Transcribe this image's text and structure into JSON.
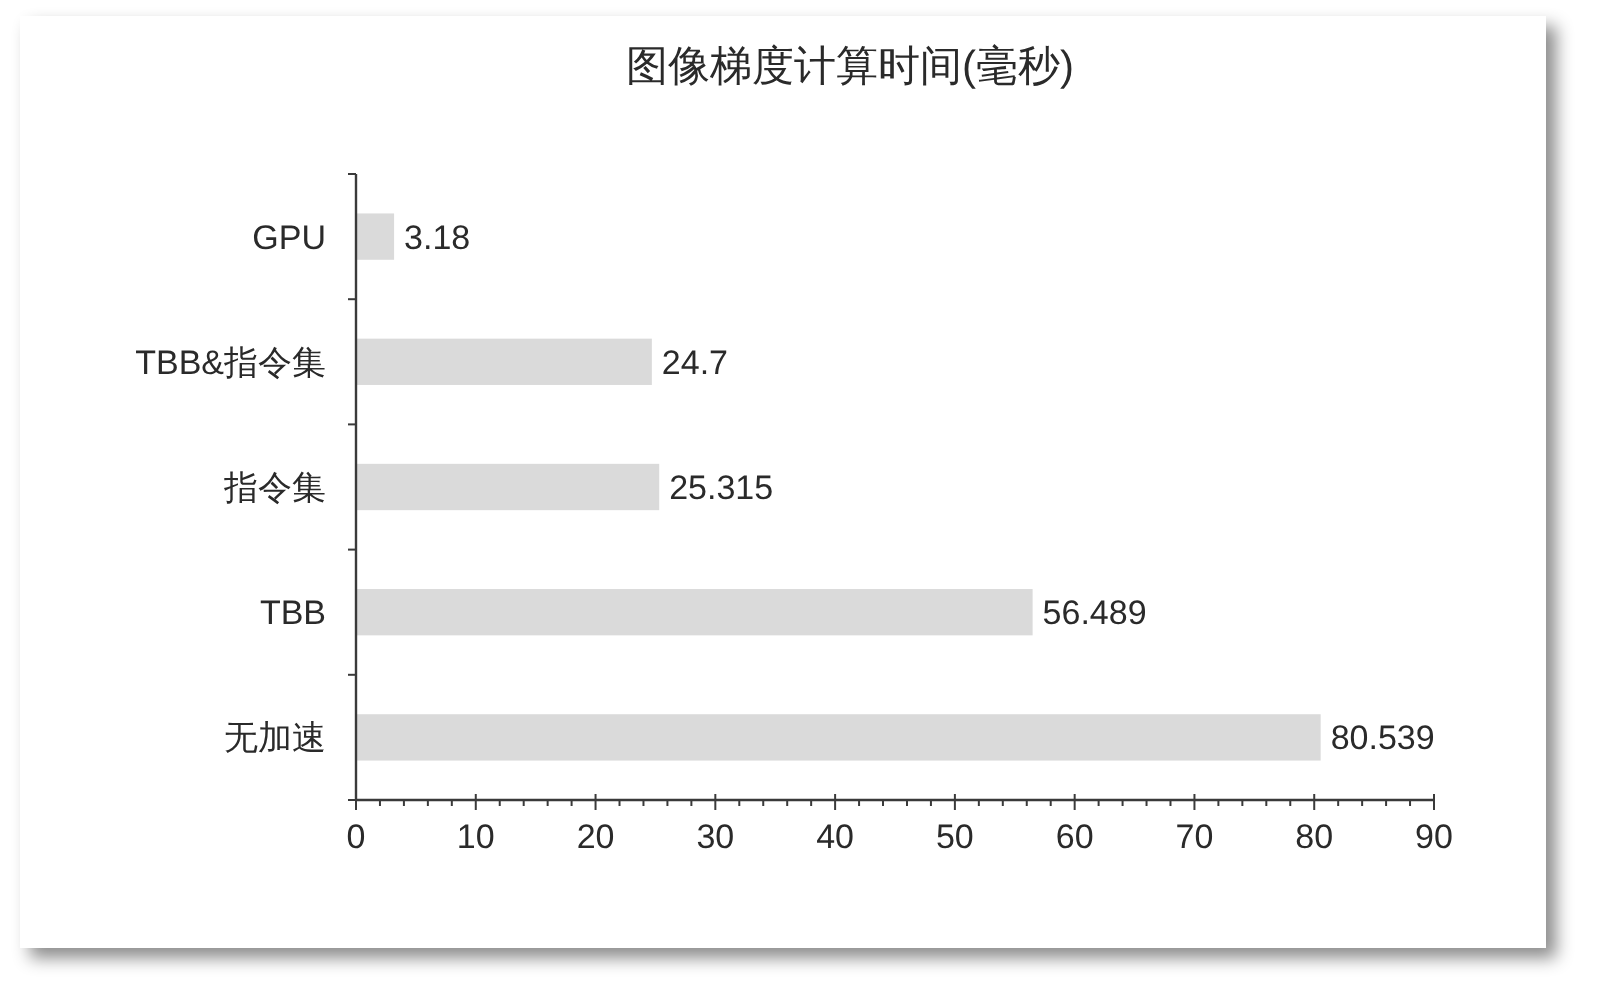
{
  "chart_data": {
    "type": "bar",
    "orientation": "horizontal",
    "title": "图像梯度计算时间(毫秒)",
    "categories": [
      "GPU",
      "TBB&指令集",
      "指令集",
      "TBB",
      "无加速"
    ],
    "values": [
      3.18,
      24.7,
      25.315,
      56.489,
      80.539
    ],
    "color": "#dadada",
    "xlim": [
      0,
      90
    ],
    "xticks": [
      0,
      {
        "value": 2,
        "label": null
      },
      {
        "value": 4,
        "label": null
      },
      {
        "value": 6,
        "label": null
      },
      {
        "value": 8,
        "label": null
      },
      10,
      {
        "value": 12,
        "label": null
      },
      {
        "value": 14,
        "label": null
      },
      {
        "value": 16,
        "label": null
      },
      {
        "value": 18,
        "label": null
      },
      20,
      {
        "value": 22,
        "label": null
      },
      {
        "value": 24,
        "label": null
      },
      {
        "value": 26,
        "label": null
      },
      {
        "value": 28,
        "label": null
      },
      30,
      {
        "value": 32,
        "label": null
      },
      {
        "value": 34,
        "label": null
      },
      {
        "value": 36,
        "label": null
      },
      {
        "value": 38,
        "label": null
      },
      40,
      {
        "value": 42,
        "label": null
      },
      {
        "value": 44,
        "label": null
      },
      {
        "value": 46,
        "label": null
      },
      {
        "value": 48,
        "label": null
      },
      50,
      {
        "value": 52,
        "label": null
      },
      {
        "value": 54,
        "label": null
      },
      {
        "value": 56,
        "label": null
      },
      {
        "value": 58,
        "label": null
      },
      60,
      {
        "value": 62,
        "label": null
      },
      {
        "value": 64,
        "label": null
      },
      {
        "value": 66,
        "label": null
      },
      {
        "value": 68,
        "label": null
      },
      70,
      {
        "value": 72,
        "label": null
      },
      {
        "value": 74,
        "label": null
      },
      {
        "value": 76,
        "label": null
      },
      {
        "value": 78,
        "label": null
      },
      80,
      {
        "value": 82,
        "label": null
      },
      {
        "value": 84,
        "label": null
      },
      {
        "value": 86,
        "label": null
      },
      {
        "value": 88,
        "label": null
      },
      90
    ],
    "data_labels": true
  }
}
